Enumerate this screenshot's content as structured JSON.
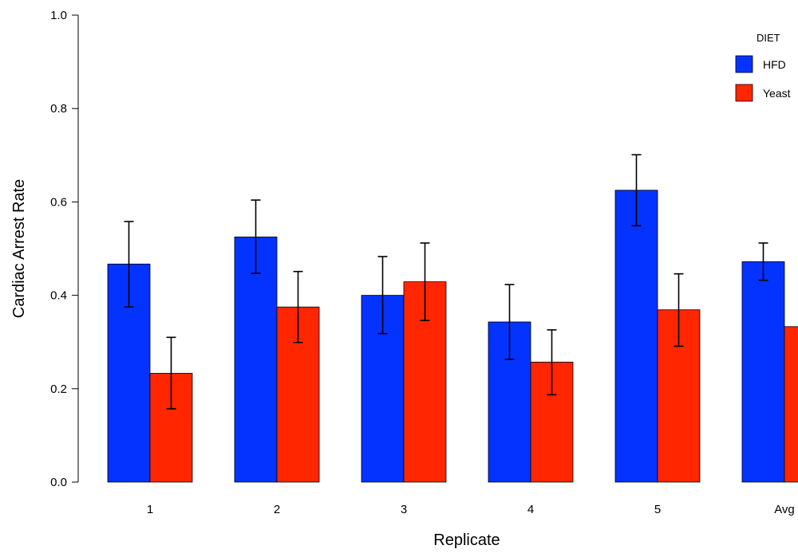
{
  "chart_data": {
    "type": "bar",
    "title": "",
    "xlabel": "Replicate",
    "ylabel": "Cardiac Arrest Rate",
    "categories": [
      "1",
      "2",
      "3",
      "4",
      "5",
      "Avg"
    ],
    "ylim": [
      0,
      1
    ],
    "yticks": [
      "0.0",
      "0.2",
      "0.4",
      "0.6",
      "0.8",
      "1.0"
    ],
    "legend": {
      "title": "DIET",
      "position": "top-right"
    },
    "series": [
      {
        "name": "HFD",
        "color": "#0433FF",
        "values": [
          0.467,
          0.525,
          0.4,
          0.343,
          0.625,
          0.472
        ],
        "err_low": [
          0.375,
          0.447,
          0.318,
          0.263,
          0.549,
          0.432
        ],
        "err_high": [
          0.558,
          0.604,
          0.483,
          0.423,
          0.701,
          0.512
        ]
      },
      {
        "name": "Yeast",
        "color": "#FF2600",
        "values": [
          0.233,
          0.375,
          0.429,
          0.257,
          0.369,
          0.333
        ],
        "err_low": [
          0.157,
          0.299,
          0.346,
          0.187,
          0.291,
          null
        ],
        "err_high": [
          0.31,
          0.451,
          0.512,
          0.326,
          0.446,
          null
        ]
      }
    ]
  }
}
